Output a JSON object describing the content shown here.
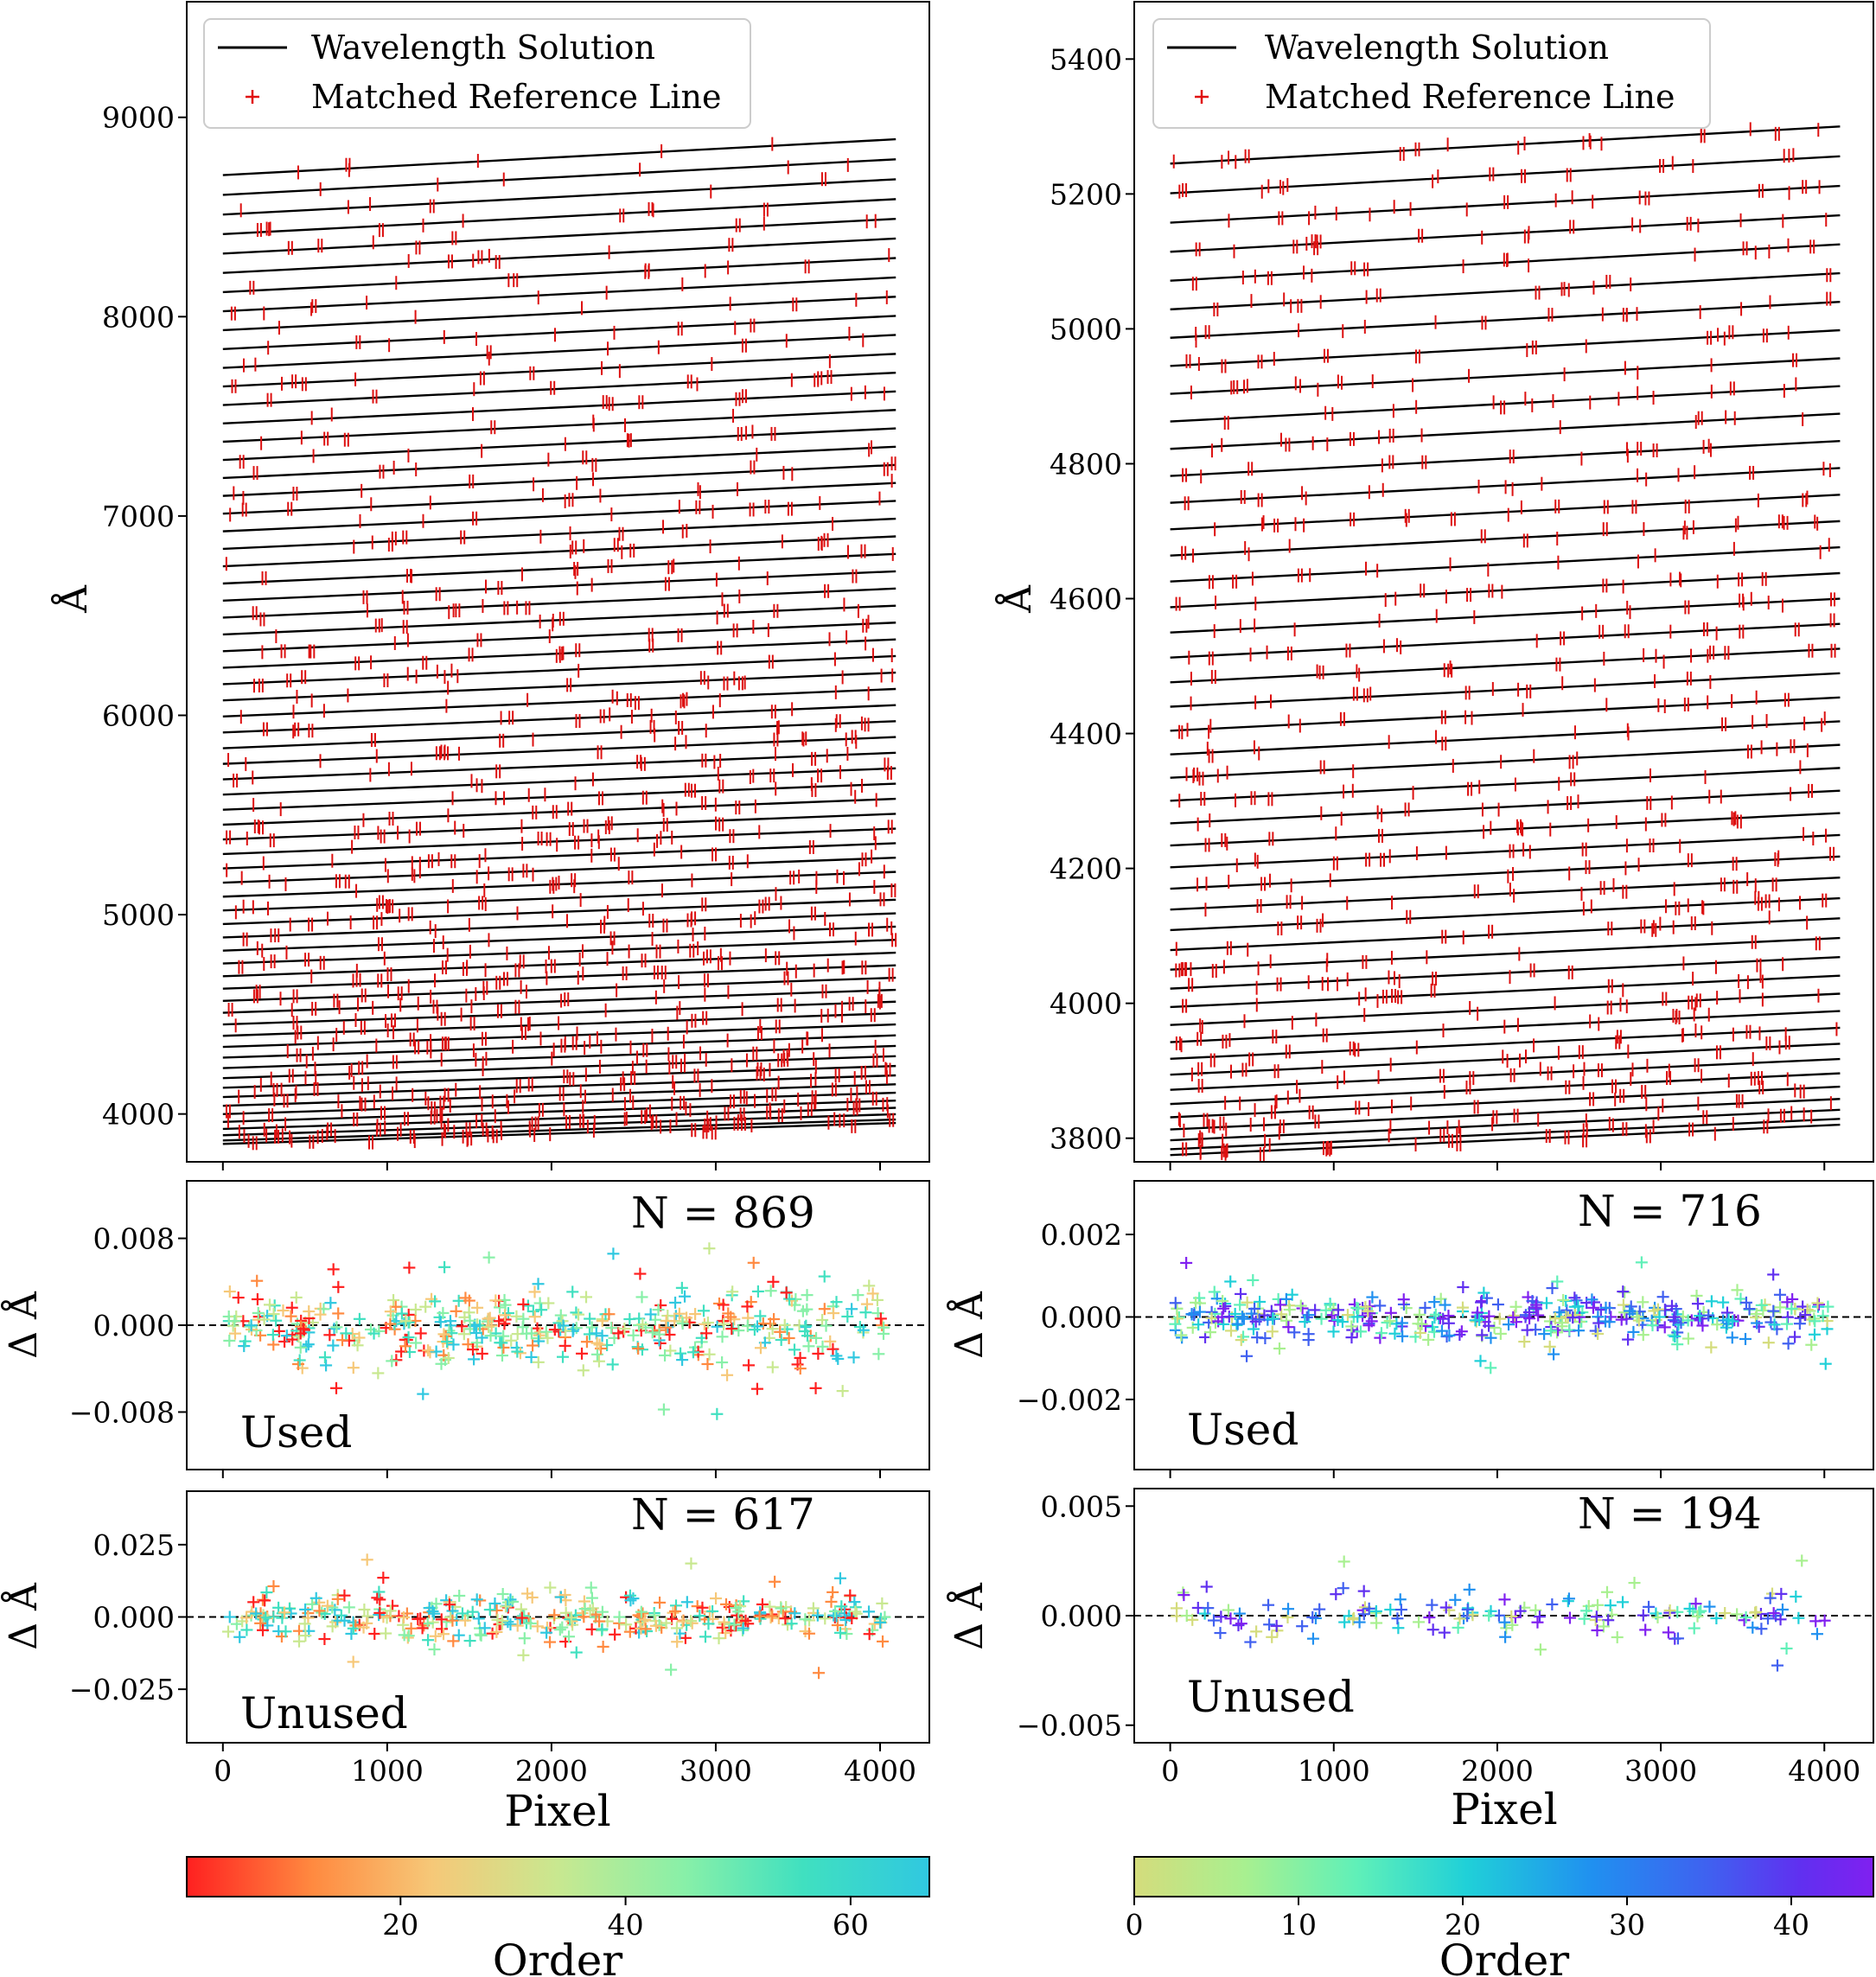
{
  "chart_data": [
    {
      "type": "line",
      "panel": "left-top",
      "title": "",
      "xlabel": "",
      "ylabel": "Å",
      "xlim": [
        -220,
        4300
      ],
      "ylim": [
        3760,
        9580
      ],
      "yticks": [
        4000,
        5000,
        6000,
        7000,
        8000,
        9000
      ],
      "ytick_labels": [
        "4000",
        "5000",
        "6000",
        "7000",
        "8000",
        "9000"
      ],
      "xticks": [
        0,
        1000,
        2000,
        3000,
        4000
      ],
      "series": [
        {
          "name": "Wavelength Solution",
          "color": "#000000",
          "marker": "line"
        },
        {
          "name": "Matched Reference Line",
          "color": "#dd0000",
          "marker": "+"
        }
      ],
      "orders": {
        "count": 67,
        "start_left": [
          3850,
          8710
        ],
        "end_right": [
          3955,
          8890
        ]
      },
      "legend": [
        "Wavelength Solution",
        "Matched Reference Line"
      ],
      "legend_loc": "upper-left"
    },
    {
      "type": "line",
      "panel": "right-top",
      "title": "",
      "xlabel": "",
      "ylabel": "Å",
      "xlim": [
        -220,
        4300
      ],
      "ylim": [
        3765,
        5485
      ],
      "yticks": [
        3800,
        4000,
        4200,
        4400,
        4600,
        4800,
        5000,
        5200,
        5400
      ],
      "ytick_labels": [
        "3800",
        "4000",
        "4200",
        "4400",
        "4600",
        "4800",
        "5000",
        "5200",
        "5400"
      ],
      "xticks": [
        0,
        1000,
        2000,
        3000,
        4000
      ],
      "series": [
        {
          "name": "Wavelength Solution",
          "color": "#000000",
          "marker": "line"
        },
        {
          "name": "Matched Reference Line",
          "color": "#dd0000",
          "marker": "+"
        }
      ],
      "orders": {
        "count": 46,
        "start_left": [
          3775,
          5245
        ],
        "end_right": [
          3820,
          5300
        ]
      },
      "legend": [
        "Wavelength Solution",
        "Matched Reference Line"
      ],
      "legend_loc": "upper-left"
    },
    {
      "type": "scatter",
      "panel": "left-used",
      "ylabel": "Δ Å",
      "xlim": [
        -220,
        4300
      ],
      "ylim": [
        -0.0133,
        0.0133
      ],
      "yticks": [
        -0.008,
        0.0,
        0.008
      ],
      "ytick_labels": [
        "−0.008",
        "0.000",
        "0.008"
      ],
      "xticks": [
        0,
        1000,
        2000,
        3000,
        4000
      ],
      "count_label": "N = 869",
      "count": 869,
      "tag": "Used",
      "colormap": "rainbow (red → cyan), order 1–67"
    },
    {
      "type": "scatter",
      "panel": "left-unused",
      "ylabel": "Δ Å",
      "xlabel": "Pixel",
      "xlim": [
        -220,
        4300
      ],
      "ylim": [
        -0.0435,
        0.0435
      ],
      "yticks": [
        -0.025,
        0.0,
        0.025
      ],
      "ytick_labels": [
        "−0.025",
        "0.000",
        "0.025"
      ],
      "xticks": [
        0,
        1000,
        2000,
        3000,
        4000
      ],
      "xtick_labels": [
        "0",
        "1000",
        "2000",
        "3000",
        "4000"
      ],
      "count_label": "N = 617",
      "count": 617,
      "tag": "Unused"
    },
    {
      "type": "scatter",
      "panel": "right-used",
      "ylabel": "Δ Å",
      "xlim": [
        -220,
        4300
      ],
      "ylim": [
        -0.0037,
        0.0033
      ],
      "yticks": [
        -0.002,
        0.0,
        0.002
      ],
      "ytick_labels": [
        "−0.002",
        "0.000",
        "0.002"
      ],
      "xticks": [
        0,
        1000,
        2000,
        3000,
        4000
      ],
      "count_label": "N = 716",
      "count": 716,
      "tag": "Used",
      "colormap": "rainbow (yellow-green → violet), order 0–45"
    },
    {
      "type": "scatter",
      "panel": "right-unused",
      "ylabel": "Δ Å",
      "xlabel": "Pixel",
      "xlim": [
        -220,
        4300
      ],
      "ylim": [
        -0.0058,
        0.0058
      ],
      "yticks": [
        -0.005,
        0.0,
        0.005
      ],
      "ytick_labels": [
        "−0.005",
        "0.000",
        "0.005"
      ],
      "xticks": [
        0,
        1000,
        2000,
        3000,
        4000
      ],
      "xtick_labels": [
        "0",
        "1000",
        "2000",
        "3000",
        "4000"
      ],
      "count_label": "N = 194",
      "count": 194,
      "tag": "Unused"
    }
  ],
  "colorbars": [
    {
      "label": "Order",
      "range": [
        1,
        67
      ],
      "ticks": [
        20,
        40,
        60
      ],
      "tick_labels": [
        "20",
        "40",
        "60"
      ],
      "colors": [
        "#ff2020",
        "#ff8a40",
        "#f6c878",
        "#c8e890",
        "#88f0a8",
        "#40e0c0",
        "#30c8e0"
      ]
    },
    {
      "label": "Order",
      "range": [
        0,
        45
      ],
      "ticks": [
        0,
        10,
        20,
        30,
        40
      ],
      "tick_labels": [
        "0",
        "10",
        "20",
        "30",
        "40"
      ],
      "colors": [
        "#d4dc7c",
        "#a8f090",
        "#60f0b8",
        "#20d0d8",
        "#2090f0",
        "#4060f0",
        "#6030f0",
        "#8020f0"
      ]
    }
  ],
  "labels": {
    "legend_line": "Wavelength Solution",
    "legend_marker": "Matched Reference Line",
    "angstrom": "Å",
    "delta": "Δ",
    "pixel": "Pixel",
    "order": "Order"
  }
}
